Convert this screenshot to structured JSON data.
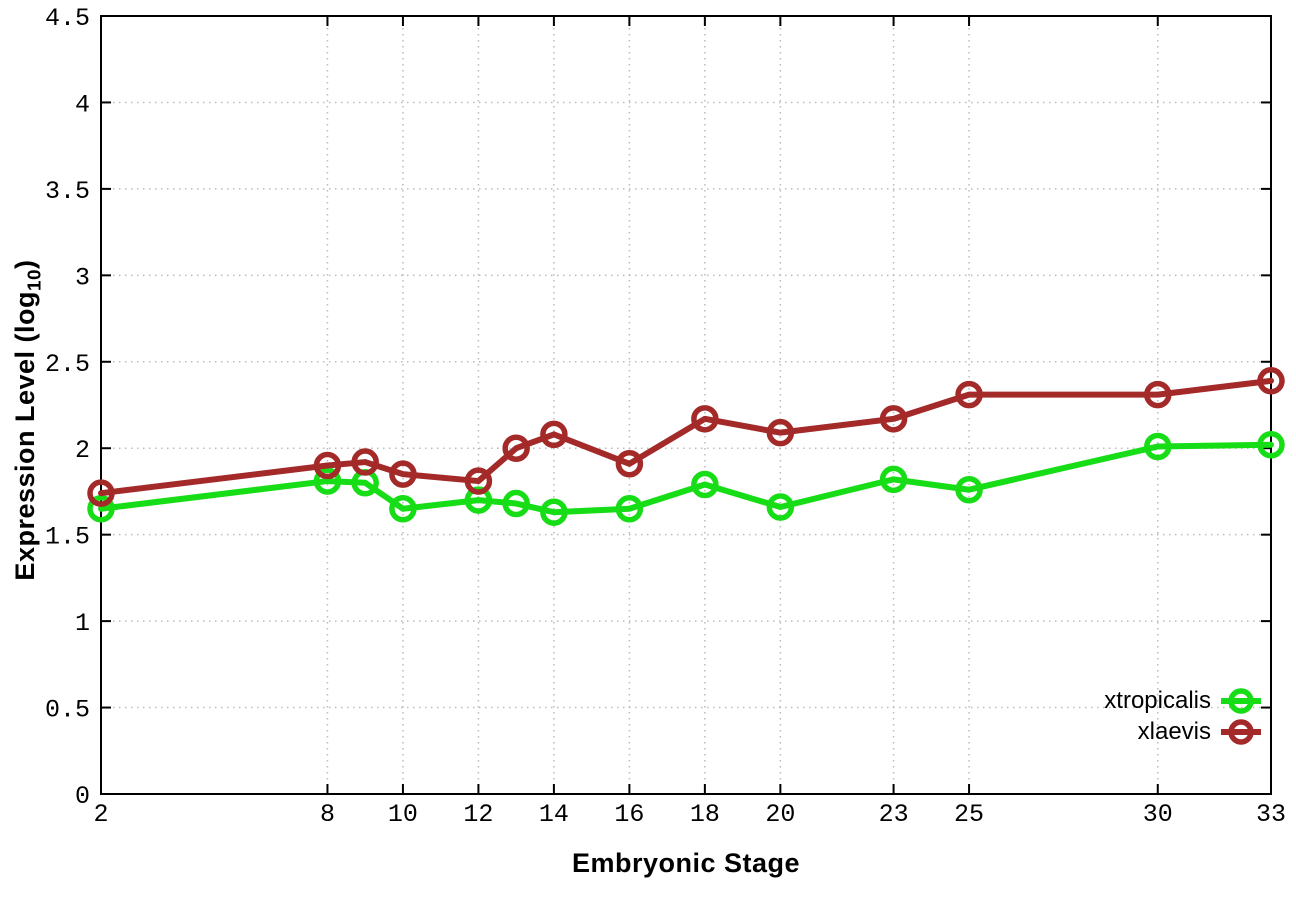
{
  "figure": {
    "background": "#ffffff",
    "xlabel": "Embryonic Stage",
    "ylabel_pre": "Expression Level (log",
    "ylabel_sub": "10",
    "ylabel_post": ")"
  },
  "chart_data": {
    "type": "line",
    "title": "",
    "xlabel": "Embryonic Stage",
    "ylabel": "Expression Level (log10)",
    "xlim": [
      2,
      33
    ],
    "ylim": [
      0,
      4.5
    ],
    "xticks": [
      2,
      8,
      10,
      12,
      14,
      16,
      18,
      20,
      23,
      25,
      30,
      33
    ],
    "yticks": [
      0,
      0.5,
      1,
      1.5,
      2,
      2.5,
      3,
      3.5,
      4,
      4.5
    ],
    "grid": "dotted",
    "grid_color": "#bbbbbb",
    "border_color": "#000000",
    "legend_position": "bottom-right",
    "marker": "open-circle",
    "x": [
      2,
      8,
      9,
      10,
      12,
      13,
      14,
      16,
      18,
      20,
      23,
      25,
      30,
      33
    ],
    "series": [
      {
        "name": "xtropicalis",
        "color": "#16dd16",
        "values": [
          1.65,
          1.81,
          1.8,
          1.65,
          1.7,
          1.68,
          1.63,
          1.65,
          1.79,
          1.66,
          1.82,
          1.76,
          2.01,
          2.02
        ]
      },
      {
        "name": "xlaevis",
        "color": "#a42a2a",
        "values": [
          1.74,
          1.9,
          1.92,
          1.85,
          1.81,
          2.0,
          2.08,
          1.91,
          2.17,
          2.09,
          2.17,
          2.31,
          2.31,
          2.39
        ]
      }
    ]
  }
}
